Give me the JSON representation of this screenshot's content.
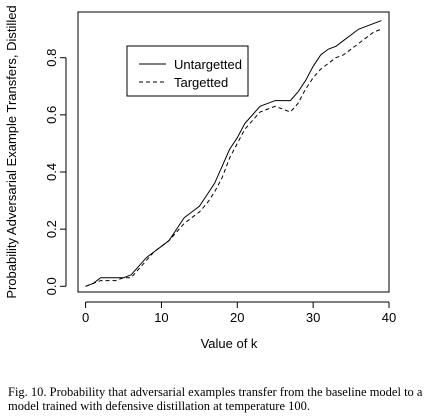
{
  "chart_data": {
    "type": "line",
    "title": "",
    "xlabel": "Value of k",
    "ylabel": "Probability Adversarial Example Transfers, Distilled",
    "xlim": [
      -1,
      40
    ],
    "ylim": [
      -0.02,
      0.96
    ],
    "xticks": [
      "0",
      "10",
      "20",
      "30",
      "40"
    ],
    "yticks": [
      "0.0",
      "0.2",
      "0.4",
      "0.6",
      "0.8"
    ],
    "legend_position": "top-left",
    "series": [
      {
        "name": "Untargetted",
        "style": "solid",
        "x": [
          0,
          1,
          2,
          3,
          4,
          5,
          6,
          7,
          8,
          9,
          10,
          11,
          12,
          13,
          14,
          15,
          16,
          17,
          18,
          19,
          20,
          21,
          22,
          23,
          24,
          25,
          26,
          27,
          28,
          29,
          30,
          31,
          32,
          33,
          34,
          35,
          36,
          37,
          38,
          39
        ],
        "values": [
          0.0,
          0.01,
          0.03,
          0.03,
          0.03,
          0.03,
          0.04,
          0.07,
          0.1,
          0.12,
          0.14,
          0.16,
          0.2,
          0.24,
          0.26,
          0.28,
          0.32,
          0.36,
          0.42,
          0.48,
          0.52,
          0.57,
          0.6,
          0.63,
          0.64,
          0.65,
          0.65,
          0.65,
          0.68,
          0.72,
          0.77,
          0.81,
          0.83,
          0.84,
          0.86,
          0.88,
          0.9,
          0.91,
          0.92,
          0.93
        ]
      },
      {
        "name": "Targetted",
        "style": "dashed",
        "x": [
          0,
          1,
          2,
          3,
          4,
          5,
          6,
          7,
          8,
          9,
          10,
          11,
          12,
          13,
          14,
          15,
          16,
          17,
          18,
          19,
          20,
          21,
          22,
          23,
          24,
          25,
          26,
          27,
          28,
          29,
          30,
          31,
          32,
          33,
          34,
          35,
          36,
          37,
          38,
          39
        ],
        "values": [
          0.0,
          0.01,
          0.02,
          0.02,
          0.02,
          0.03,
          0.03,
          0.06,
          0.09,
          0.12,
          0.14,
          0.16,
          0.19,
          0.22,
          0.24,
          0.26,
          0.29,
          0.33,
          0.38,
          0.45,
          0.5,
          0.55,
          0.58,
          0.61,
          0.62,
          0.63,
          0.62,
          0.61,
          0.64,
          0.69,
          0.73,
          0.76,
          0.78,
          0.8,
          0.81,
          0.83,
          0.85,
          0.87,
          0.89,
          0.9
        ]
      }
    ]
  },
  "caption": {
    "text": "Fig. 10. Probability that adversarial examples transfer from the baseline model to a model trained with defensive distillation at temperature 100."
  }
}
